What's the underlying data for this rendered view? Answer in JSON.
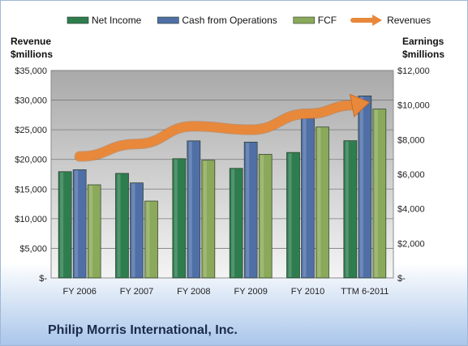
{
  "footer_title": "Philip Morris International, Inc.",
  "chart_data": {
    "type": "bar",
    "categories": [
      "FY 2006",
      "FY 2007",
      "FY 2008",
      "FY 2009",
      "FY 2010",
      "TTM 6-2011"
    ],
    "series": [
      {
        "name": "Net Income",
        "axis": "right",
        "color": "#2e7d4f",
        "values": [
          6150,
          6050,
          6900,
          6340,
          7260,
          7940
        ]
      },
      {
        "name": "Cash from Operations",
        "axis": "right",
        "color": "#4f6fa6",
        "values": [
          6260,
          5500,
          7930,
          7860,
          9440,
          10530
        ]
      },
      {
        "name": "FCF",
        "axis": "right",
        "color": "#8aa95a",
        "values": [
          5390,
          4450,
          6810,
          7150,
          8730,
          9770
        ]
      },
      {
        "name": "Revenues",
        "axis": "left",
        "type": "line",
        "color": "#e8883a",
        "values": [
          20500,
          22600,
          25600,
          25000,
          27700,
          29500
        ]
      }
    ],
    "left_axis": {
      "label_line1": "Revenue",
      "label_line2": "$millions",
      "range": [
        0,
        35000
      ],
      "ticks": [
        "$-",
        "$5,000",
        "$10,000",
        "$15,000",
        "$20,000",
        "$25,000",
        "$30,000",
        "$35,000"
      ]
    },
    "right_axis": {
      "label_line1": "Earnings",
      "label_line2": "$millions",
      "range": [
        0,
        12000
      ],
      "ticks": [
        "$-",
        "$2,000",
        "$4,000",
        "$6,000",
        "$8,000",
        "$10,000",
        "$12,000"
      ]
    },
    "grid": true,
    "legend_position": "top"
  }
}
